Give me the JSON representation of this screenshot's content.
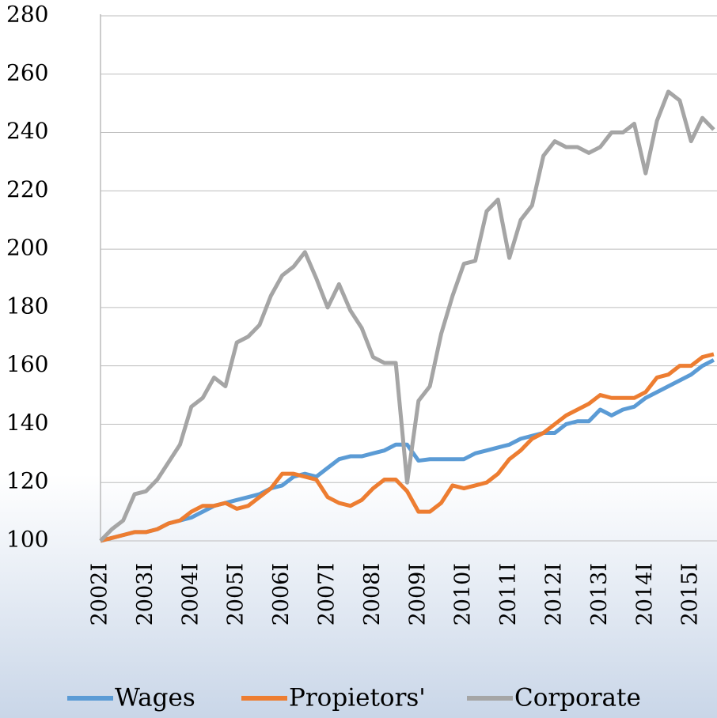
{
  "chart_data": {
    "type": "line",
    "categories": [
      "2002I",
      null,
      null,
      null,
      "2003I",
      null,
      null,
      null,
      "2004I",
      null,
      null,
      null,
      "2005I",
      null,
      null,
      null,
      "2006I",
      null,
      null,
      null,
      "2007I",
      null,
      null,
      null,
      "2008I",
      null,
      null,
      null,
      "2009I",
      null,
      null,
      null,
      "2010I",
      null,
      null,
      null,
      "2011I",
      null,
      null,
      null,
      "2012I",
      null,
      null,
      null,
      "2013I",
      null,
      null,
      null,
      "2014I",
      null,
      null,
      null,
      "2015I",
      null,
      null
    ],
    "series": [
      {
        "name": "Wages",
        "color": "#5b9bd5",
        "values": [
          100,
          101,
          102,
          103,
          103,
          104,
          106,
          107,
          108,
          110,
          112,
          113,
          114,
          115,
          116,
          118,
          119,
          122,
          123,
          122,
          125,
          128,
          129,
          129,
          130,
          131,
          133,
          133,
          127.5,
          128,
          128,
          128,
          128,
          130,
          131,
          132,
          133,
          135,
          136,
          137,
          137,
          140,
          141,
          141,
          145,
          143,
          145,
          146,
          149,
          151,
          153,
          155,
          157,
          160,
          162
        ]
      },
      {
        "name": "Propietors'",
        "color": "#ed7d31",
        "values": [
          100,
          101,
          102,
          103,
          103,
          104,
          106,
          107,
          110,
          112,
          112,
          113,
          111,
          112,
          115,
          118,
          123,
          123,
          122,
          121,
          115,
          113,
          112,
          114,
          118,
          121,
          121,
          117,
          110,
          110,
          113,
          119,
          118,
          119,
          120,
          123,
          128,
          131,
          135,
          137,
          140,
          143,
          145,
          147,
          150,
          149,
          149,
          149,
          151,
          156,
          157,
          160,
          160,
          163,
          164
        ]
      },
      {
        "name": "Corporate",
        "color": "#a5a5a5",
        "values": [
          100,
          104,
          107,
          116,
          117,
          121,
          127,
          133,
          146,
          149,
          156,
          153,
          168,
          170,
          174,
          184,
          191,
          194,
          199,
          190,
          180,
          188,
          179,
          173,
          163,
          161,
          161,
          120,
          148,
          153,
          171,
          184,
          195,
          196,
          213,
          217,
          197,
          210,
          215,
          232,
          237,
          235,
          235,
          233,
          235,
          240,
          240,
          243,
          226,
          244,
          254,
          251,
          237,
          245,
          241
        ]
      }
    ],
    "ylim": [
      100,
      280
    ],
    "yticks": [
      100,
      120,
      140,
      160,
      180,
      200,
      220,
      240,
      260,
      280
    ],
    "grid": true,
    "legend": "bottom"
  }
}
